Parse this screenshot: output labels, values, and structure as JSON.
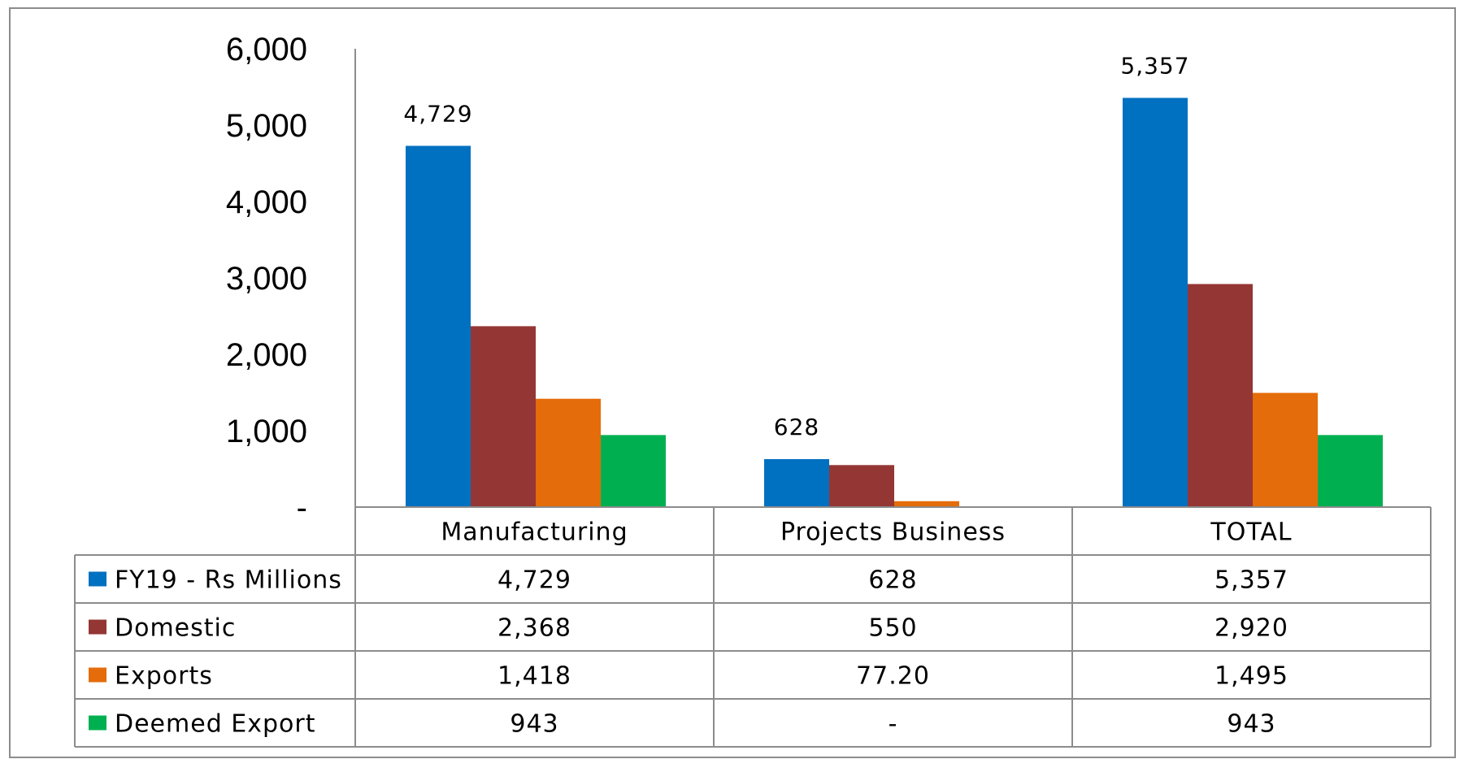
{
  "chart_data": {
    "type": "bar",
    "categories": [
      "Manufacturing",
      "Projects Business",
      "TOTAL"
    ],
    "series": [
      {
        "name": "FY19 - Rs Millions",
        "values": [
          4729,
          628,
          5357
        ],
        "table": [
          "4,729",
          "628",
          "5,357"
        ],
        "labels": [
          "4,729",
          "628",
          "5,357"
        ],
        "color": "#0070C0"
      },
      {
        "name": "Domestic",
        "values": [
          2368,
          550,
          2920
        ],
        "table": [
          "2,368",
          "550",
          "2,920"
        ],
        "labels": [
          "",
          "",
          ""
        ],
        "color": "#943634"
      },
      {
        "name": "Exports",
        "values": [
          1418,
          77.2,
          1495
        ],
        "table": [
          "1,418",
          "77.20",
          "1,495"
        ],
        "labels": [
          "",
          "",
          ""
        ],
        "color": "#E46C0A"
      },
      {
        "name": "Deemed Export",
        "values": [
          943,
          0,
          943
        ],
        "table": [
          "943",
          "-",
          "943"
        ],
        "labels": [
          "",
          "",
          ""
        ],
        "color": "#00B050"
      }
    ],
    "ylim": [
      0,
      6000
    ],
    "yticks": [
      0,
      1000,
      2000,
      3000,
      4000,
      5000,
      6000
    ],
    "ytick_labels": [
      "-",
      "1,000",
      "2,000",
      "3,000",
      "4,000",
      "5,000",
      "6,000"
    ],
    "xlabel": "",
    "ylabel": "",
    "title": "",
    "legend": "data-table",
    "grid": false
  }
}
